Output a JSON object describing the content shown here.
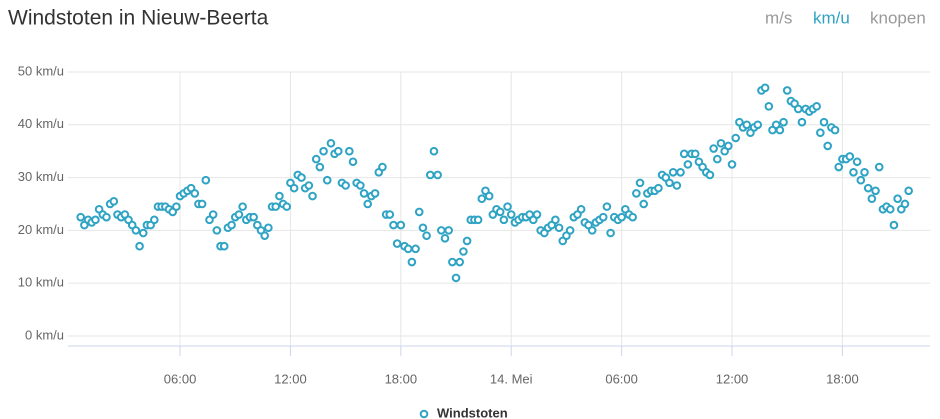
{
  "chart_data": {
    "type": "scatter",
    "title": "Windstoten in Nieuw-Beerta",
    "unit_options": [
      "m/s",
      "km/u",
      "knopen"
    ],
    "xlim": [
      -0.09,
      46.76
    ],
    "xticks": [
      {
        "value": 6,
        "label": "06:00"
      },
      {
        "value": 12,
        "label": "12:00"
      },
      {
        "value": 18,
        "label": "18:00"
      },
      {
        "value": 24,
        "label": "14. Mei"
      },
      {
        "value": 30,
        "label": "06:00"
      },
      {
        "value": 36,
        "label": "12:00"
      },
      {
        "value": 42,
        "label": "18:00"
      }
    ],
    "ylim": [
      -1.9,
      50
    ],
    "yticks": [
      {
        "value": 0,
        "label": "0 km/u"
      },
      {
        "value": 10,
        "label": "10 km/u"
      },
      {
        "value": 20,
        "label": "20 km/u"
      },
      {
        "value": 30,
        "label": "30 km/u"
      },
      {
        "value": 40,
        "label": "40 km/u"
      },
      {
        "value": 50,
        "label": "50 km/u"
      }
    ],
    "grid": true,
    "legend": "bottom",
    "series": [
      {
        "name": "Windstoten",
        "color": "#2ea3c4",
        "x": [
          0.6,
          0.8,
          1,
          1.2,
          1.4,
          1.6,
          1.8,
          2,
          2.2,
          2.4,
          2.6,
          2.8,
          3,
          3.2,
          3.4,
          3.6,
          3.8,
          4,
          4.2,
          4.4,
          4.6,
          4.8,
          5,
          5.2,
          5.4,
          5.6,
          5.8,
          6,
          6.2,
          6.4,
          6.6,
          6.8,
          7,
          7.2,
          7.4,
          7.6,
          7.8,
          8,
          8.2,
          8.4,
          8.6,
          8.8,
          9,
          9.2,
          9.4,
          9.6,
          9.8,
          10,
          10.2,
          10.4,
          10.6,
          10.8,
          11,
          11.2,
          11.4,
          11.6,
          11.8,
          12,
          12.2,
          12.4,
          12.6,
          12.8,
          13,
          13.2,
          13.4,
          13.6,
          13.8,
          14,
          14.2,
          14.4,
          14.6,
          14.8,
          15,
          15.2,
          15.4,
          15.6,
          15.8,
          16,
          16.2,
          16.4,
          16.6,
          16.8,
          17,
          17.2,
          17.4,
          17.6,
          17.8,
          18,
          18.2,
          18.4,
          18.6,
          18.8,
          19,
          19.2,
          19.4,
          19.6,
          19.8,
          20,
          20.2,
          20.4,
          20.6,
          20.8,
          21,
          21.2,
          21.4,
          21.6,
          21.8,
          22,
          22.2,
          22.4,
          22.6,
          22.8,
          23,
          23.2,
          23.4,
          23.6,
          23.8,
          24,
          24.2,
          24.4,
          24.6,
          24.8,
          25,
          25.2,
          25.4,
          25.6,
          25.8,
          26,
          26.2,
          26.4,
          26.6,
          26.8,
          27,
          27.2,
          27.4,
          27.6,
          27.8,
          28,
          28.2,
          28.4,
          28.6,
          28.8,
          29,
          29.2,
          29.4,
          29.6,
          29.8,
          30,
          30.2,
          30.4,
          30.6,
          30.8,
          31,
          31.2,
          31.4,
          31.6,
          31.8,
          32,
          32.2,
          32.4,
          32.6,
          32.8,
          33,
          33.2,
          33.4,
          33.6,
          33.8,
          34,
          34.2,
          34.4,
          34.6,
          34.8,
          35,
          35.2,
          35.4,
          35.6,
          35.8,
          36,
          36.2,
          36.4,
          36.6,
          36.8,
          37,
          37.2,
          37.4,
          37.6,
          37.8,
          38,
          38.2,
          38.4,
          38.6,
          38.8,
          39,
          39.2,
          39.4,
          39.6,
          39.8,
          40,
          40.2,
          40.4,
          40.6,
          40.8,
          41,
          41.2,
          41.4,
          41.6,
          41.8,
          42,
          42.2,
          42.4,
          42.6,
          42.8,
          43,
          43.2,
          43.4,
          43.6,
          43.8,
          44,
          44.2,
          44.4,
          44.6,
          44.8,
          45,
          45.2,
          45.4,
          45.6
        ],
        "values": [
          22.5,
          21,
          22,
          21.5,
          22,
          24,
          23,
          22.5,
          25,
          25.5,
          23,
          22.5,
          23,
          22,
          21,
          20,
          17,
          19.5,
          21,
          21,
          22,
          24.5,
          24.5,
          24.5,
          24,
          23.5,
          24.5,
          26.5,
          27,
          27.5,
          28,
          27,
          25,
          25,
          29.5,
          22,
          23,
          20,
          17,
          17,
          20.5,
          21,
          22.5,
          23,
          24.5,
          22,
          22.5,
          22.5,
          21,
          20,
          19,
          20.5,
          24.5,
          24.5,
          26.5,
          25,
          24.5,
          29,
          28,
          30.5,
          30,
          28,
          28.5,
          26.5,
          33.5,
          32,
          35,
          29.5,
          36.5,
          34.5,
          35,
          29,
          28.5,
          35,
          33,
          29,
          28.5,
          27,
          25,
          26.5,
          27,
          31,
          32,
          23,
          23,
          21,
          17.5,
          21,
          17,
          16.5,
          14,
          16.5,
          23.5,
          20.5,
          19,
          30.5,
          35,
          30.5,
          20,
          18.5,
          20,
          14,
          11,
          14,
          16,
          18,
          22,
          22,
          22,
          26,
          27.5,
          26.5,
          23,
          24,
          23.5,
          22,
          24.5,
          23,
          21.5,
          22,
          22.5,
          22.5,
          23,
          22,
          23,
          20,
          19.5,
          20.5,
          21,
          22,
          20.5,
          18,
          19,
          20,
          22.5,
          23,
          24,
          21.5,
          21,
          20,
          21.5,
          22,
          22.5,
          24.5,
          19.5,
          22.5,
          22,
          22.5,
          24,
          23,
          22.5,
          27,
          29,
          25,
          27,
          27.5,
          27.5,
          28,
          30.5,
          30,
          29,
          31,
          28.5,
          31,
          34.5,
          32.5,
          34.5,
          34.5,
          33,
          32,
          31,
          30.5,
          35.5,
          33.5,
          36.5,
          35,
          36,
          32.5,
          37.5,
          40.5,
          39.5,
          40,
          38.5,
          39.5,
          40,
          46.5,
          47,
          43.5,
          39,
          40,
          39,
          40.5,
          46.5,
          44.5,
          44,
          43,
          40.5,
          43,
          42.5,
          43,
          43.5,
          38.5,
          40.5,
          36,
          39.5,
          39,
          32,
          33.5,
          33.5,
          34,
          31,
          33,
          29.5,
          31,
          28,
          26,
          27.5,
          32,
          24,
          24.5,
          24,
          21,
          26,
          24,
          25,
          27.5
        ]
      }
    ]
  }
}
